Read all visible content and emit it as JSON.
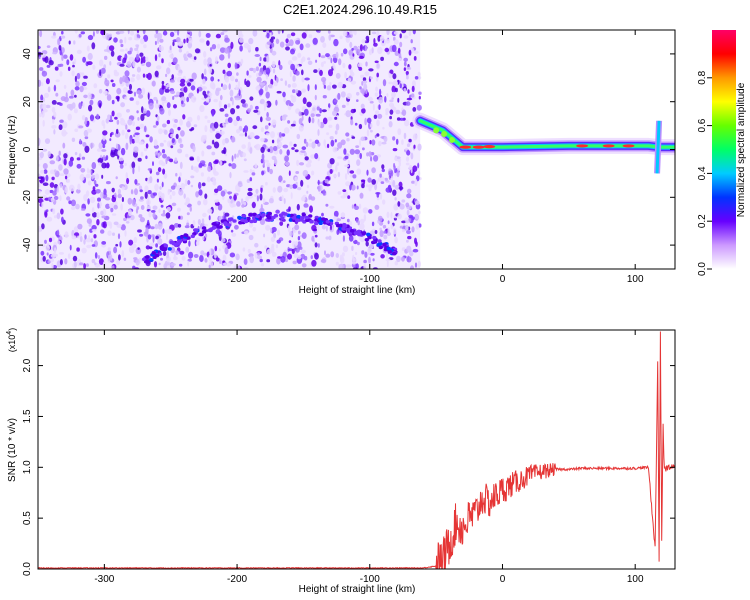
{
  "title": "C2E1.2024.296.10.49.R15",
  "chart_data": [
    {
      "type": "heatmap",
      "xlabel": "Height of straight line (km)",
      "ylabel": "Frequency (Hz)",
      "xlim": [
        -350,
        130
      ],
      "ylim": [
        -50,
        50
      ],
      "x_ticks": [
        -300,
        -200,
        -100,
        0,
        100
      ],
      "y_ticks": [
        -40,
        -20,
        0,
        20,
        40
      ],
      "x_tick_labels": [
        "-300",
        "-200",
        "-100",
        "0",
        "100"
      ],
      "y_tick_labels": [
        "-40",
        "-20",
        "0",
        "20",
        "40"
      ],
      "noise_region_x": [
        -350,
        -62
      ],
      "arc": {
        "x_start": -270,
        "x_end": -80,
        "peak_x": -170,
        "peak_y": -28,
        "edge_y": -45
      },
      "trace": [
        {
          "x": -62,
          "y": 12
        },
        {
          "x": -45,
          "y": 8
        },
        {
          "x": -30,
          "y": 1
        },
        {
          "x": 0,
          "y": 1
        },
        {
          "x": 50,
          "y": 1.5
        },
        {
          "x": 110,
          "y": 1.5
        },
        {
          "x": 118,
          "y": 1
        },
        {
          "x": 130,
          "y": 1
        }
      ],
      "spike": {
        "x": 118,
        "y_range": [
          -10,
          12
        ]
      },
      "colorbar": {
        "label": "Normalized spectral amplitude",
        "range": [
          0.0,
          1.0
        ],
        "ticks": [
          0.0,
          0.2,
          0.4,
          0.6,
          0.8
        ],
        "tick_labels": [
          "0.0",
          "0.2",
          "0.4",
          "0.6",
          "0.8"
        ],
        "colors": [
          "#ffffff",
          "#cc99ff",
          "#6600ff",
          "#0033ff",
          "#00ccff",
          "#00ff66",
          "#66ff00",
          "#ffff00",
          "#ff9900",
          "#ff0000",
          "#ff0066"
        ]
      }
    },
    {
      "type": "line",
      "xlabel": "Height of straight line (km)",
      "ylabel": "SNR (10 * v/v)",
      "y_multiplier_label": "(x10",
      "y_multiplier_exp": "4",
      "y_multiplier_close": ")",
      "xlim": [
        -350,
        130
      ],
      "ylim": [
        0,
        2.35
      ],
      "x_ticks": [
        -300,
        -200,
        -100,
        0,
        100
      ],
      "y_ticks": [
        0.0,
        0.5,
        1.0,
        1.5,
        2.0
      ],
      "x_tick_labels": [
        "-300",
        "-200",
        "-100",
        "0",
        "100"
      ],
      "y_tick_labels": [
        "0.0",
        "0.5",
        "1.0",
        "1.5",
        "2.0"
      ],
      "color": "#e53535",
      "series": [
        {
          "x": [
            -350,
            -60,
            -50,
            -45,
            -40,
            -35,
            -30,
            -25,
            -20,
            -15,
            -10,
            -5,
            0,
            10,
            20,
            30,
            40,
            50,
            60,
            80,
            100,
            110,
            115,
            117,
            118,
            119,
            120,
            121,
            122,
            125,
            130
          ],
          "y": [
            0.01,
            0.01,
            0.03,
            0.08,
            0.25,
            0.45,
            0.4,
            0.5,
            0.55,
            0.7,
            0.65,
            0.72,
            0.78,
            0.85,
            0.92,
            0.96,
            0.98,
            0.98,
            0.99,
            0.99,
            0.99,
            1.0,
            0.2,
            2.05,
            0.1,
            2.35,
            0.3,
            1.4,
            0.98,
            1.0,
            1.0
          ]
        }
      ]
    }
  ]
}
